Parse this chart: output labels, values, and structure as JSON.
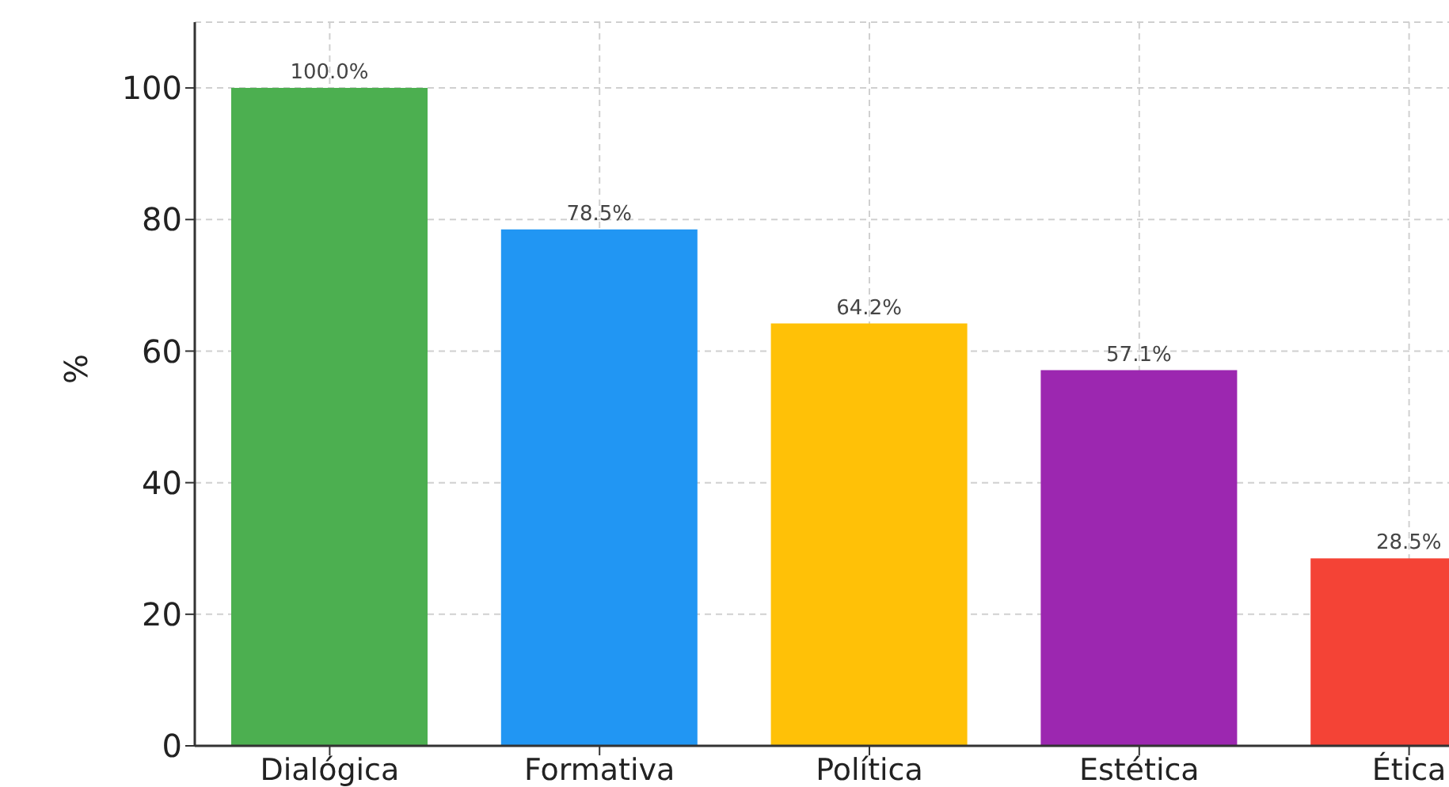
{
  "chart_data": {
    "type": "bar",
    "ylabel": "%",
    "categories": [
      "Dialógica",
      "Formativa",
      "Política",
      "Estética",
      "Ética"
    ],
    "values": [
      100,
      78.5,
      64.2,
      57.1,
      28.5
    ],
    "value_labels": [
      "100.0%",
      "78.5%",
      "64.2%",
      "57.1%",
      "28.5%"
    ],
    "colors": [
      "#4caf50",
      "#2196f3",
      "#ffc107",
      "#9c27b0",
      "#f44336"
    ],
    "ylim": [
      0,
      110
    ],
    "yticks": [
      0,
      20,
      40,
      60,
      80,
      100
    ],
    "grid": true
  }
}
